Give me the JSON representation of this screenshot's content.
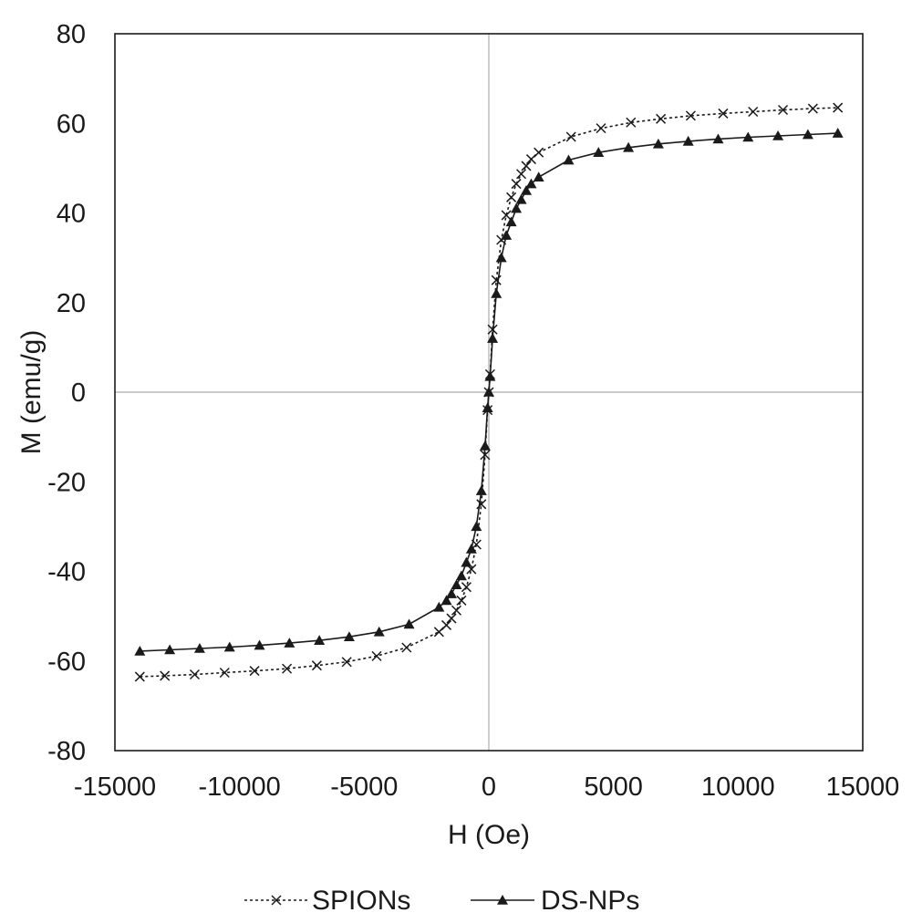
{
  "chart_data": {
    "type": "scatter",
    "xlabel": "H (Oe)",
    "ylabel": "M (emu/g)",
    "xlim": [
      -15000,
      15000
    ],
    "ylim": [
      -80,
      80
    ],
    "xticks": [
      -15000,
      -10000,
      -5000,
      0,
      5000,
      10000,
      15000
    ],
    "yticks": [
      -80,
      -60,
      -40,
      -20,
      0,
      20,
      40,
      60,
      80
    ],
    "xtick_labels": [
      "-15000",
      "-10000",
      "-5000",
      "0",
      "5000",
      "10000",
      "15000"
    ],
    "ytick_labels": [
      "-80",
      "-60",
      "-40",
      "-20",
      "0",
      "20",
      "40",
      "60",
      "80"
    ],
    "grid": "zero lines only",
    "legend_position": "bottom",
    "series": [
      {
        "name": "SPIONs",
        "line_style": "dotted",
        "marker": "x",
        "color": "#1a1a1a",
        "x": [
          -14000,
          -13000,
          -11800,
          -10600,
          -9400,
          -8100,
          -6900,
          -5700,
          -4500,
          -3300,
          -2000,
          -1700,
          -1500,
          -1300,
          -1100,
          -900,
          -700,
          -500,
          -300,
          -150,
          -50,
          0,
          50,
          150,
          300,
          500,
          700,
          900,
          1100,
          1300,
          1500,
          1700,
          2000,
          3300,
          4500,
          5700,
          6900,
          8100,
          9400,
          10600,
          11800,
          13000,
          14000
        ],
        "y": [
          -63.5,
          -63.3,
          -63.0,
          -62.6,
          -62.2,
          -61.7,
          -61.0,
          -60.2,
          -58.9,
          -57.0,
          -53.5,
          -52.0,
          -50.5,
          -48.7,
          -46.5,
          -43.5,
          -39.5,
          -34.0,
          -25.0,
          -14.0,
          -4.0,
          0,
          4.0,
          14.0,
          25.0,
          34.0,
          39.5,
          43.5,
          46.5,
          48.7,
          50.5,
          52.0,
          53.5,
          57.0,
          58.9,
          60.2,
          61.0,
          61.7,
          62.2,
          62.6,
          63.0,
          63.3,
          63.5
        ]
      },
      {
        "name": "DS-NPs",
        "line_style": "solid",
        "marker": "triangle",
        "color": "#1a1a1a",
        "x": [
          -14000,
          -12800,
          -11600,
          -10400,
          -9200,
          -8000,
          -6800,
          -5600,
          -4400,
          -3200,
          -2000,
          -1700,
          -1500,
          -1300,
          -1100,
          -900,
          -700,
          -500,
          -300,
          -150,
          -50,
          0,
          50,
          150,
          300,
          500,
          700,
          900,
          1100,
          1300,
          1500,
          1700,
          2000,
          3200,
          4400,
          5600,
          6800,
          8000,
          9200,
          10400,
          11600,
          12800,
          14000
        ],
        "y": [
          -57.8,
          -57.5,
          -57.2,
          -56.9,
          -56.5,
          -56.0,
          -55.4,
          -54.6,
          -53.5,
          -51.8,
          -48.0,
          -46.5,
          -45.0,
          -43.0,
          -41.0,
          -38.0,
          -35.0,
          -30.0,
          -22.0,
          -12.0,
          -3.5,
          0,
          3.5,
          12.0,
          22.0,
          30.0,
          35.0,
          38.0,
          41.0,
          43.0,
          45.0,
          46.5,
          48.0,
          51.8,
          53.5,
          54.6,
          55.4,
          56.0,
          56.5,
          56.9,
          57.2,
          57.5,
          57.8
        ]
      }
    ]
  }
}
